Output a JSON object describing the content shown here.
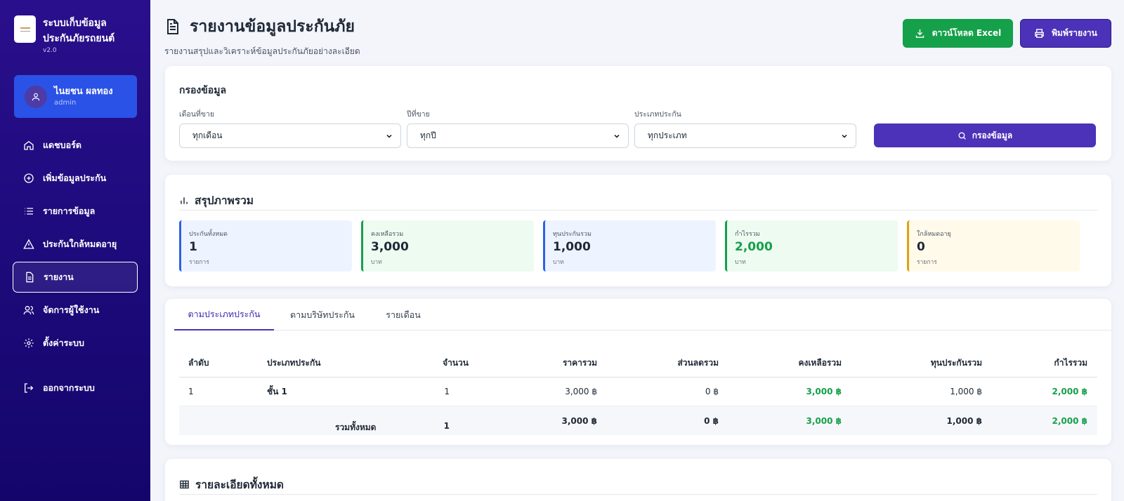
{
  "app": {
    "title": "ระบบเก็บข้อมูลประกันภัยรถยนต์",
    "version": "v2.0"
  },
  "user": {
    "name": "ไนยชน ผลทอง",
    "role": "admin"
  },
  "nav": [
    {
      "label": "แดชบอร์ด",
      "icon": "home-icon"
    },
    {
      "label": "เพิ่มข้อมูลประกัน",
      "icon": "plus-circle-icon"
    },
    {
      "label": "รายการข้อมูล",
      "icon": "list-icon"
    },
    {
      "label": "ประกันใกล้หมดอายุ",
      "icon": "warning-icon"
    },
    {
      "label": "รายงาน",
      "icon": "document-icon",
      "active": true
    },
    {
      "label": "จัดการผู้ใช้งาน",
      "icon": "users-icon"
    },
    {
      "label": "ตั้งค่าระบบ",
      "icon": "gear-icon"
    },
    {
      "label": "ออกจากระบบ",
      "icon": "logout-icon"
    }
  ],
  "header": {
    "title": "รายงานข้อมูลประกันภัย",
    "subtitle": "รายงานสรุปและวิเคราะห์ข้อมูลประกันภัยอย่างละเอียด",
    "excel_label": "ดาวน์โหลด Excel",
    "print_label": "พิมพ์รายงาน"
  },
  "filter": {
    "title": "กรองข้อมูล",
    "month_label": "เดือนที่ขาย",
    "month_value": "ทุกเดือน",
    "year_label": "ปีที่ขาย",
    "year_value": "ทุกปี",
    "type_label": "ประเภทประกัน",
    "type_value": "ทุกประเภท",
    "button": "กรองข้อมูล"
  },
  "summary": {
    "title": "สรุปภาพรวม",
    "stats": [
      {
        "label": "ประกันทั้งหมด",
        "value": "1",
        "unit": "รายการ",
        "color": "#2b63e6"
      },
      {
        "label": "คงเหลือรวม",
        "value": "3,000",
        "unit": "บาท",
        "color": "#15a04a"
      },
      {
        "label": "ทุนประกันรวม",
        "value": "1,000",
        "unit": "บาท",
        "color": "#2b63e6"
      },
      {
        "label": "กำไรรวม",
        "value": "2,000",
        "unit": "บาท",
        "color": "#15a04a"
      },
      {
        "label": "ใกล้หมดอายุ",
        "value": "0",
        "unit": "รายการ",
        "color": "#e0a012"
      }
    ]
  },
  "tabs": [
    "ตามประเภทประกัน",
    "ตามบริษัทประกัน",
    "รายเดือน"
  ],
  "table": {
    "headers": [
      "ลำดับ",
      "ประเภทประกัน",
      "จำนวน",
      "ราคารวม",
      "ส่วนลดรวม",
      "คงเหลือรวม",
      "ทุนประกันรวม",
      "กำไรรวม"
    ],
    "rows": [
      {
        "no": "1",
        "type": "ชั้น 1",
        "count": "1",
        "price": "3,000 ฿",
        "discount": "0 ฿",
        "remain": "3,000 ฿",
        "insured": "1,000 ฿",
        "profit": "2,000 ฿"
      }
    ],
    "total": {
      "label": "รวมทั้งหมด",
      "count": "1",
      "price": "3,000 ฿",
      "discount": "0 ฿",
      "remain": "3,000 ฿",
      "insured": "1,000 ฿",
      "profit": "2,000 ฿"
    }
  },
  "details": {
    "title": "รายละเอียดทั้งหมด"
  }
}
